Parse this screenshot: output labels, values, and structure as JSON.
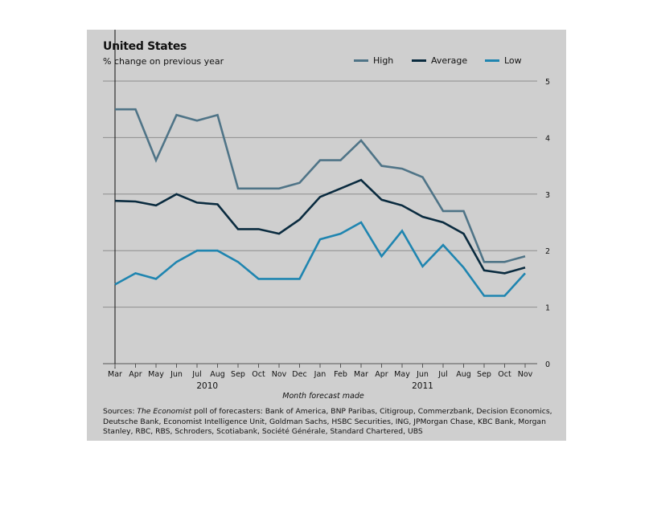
{
  "chart_data": {
    "type": "line",
    "title": "United States",
    "subtitle": "% change on previous year",
    "xlabel": "Month forecast made",
    "ylabel": "",
    "ylim": [
      0,
      5
    ],
    "yticks": [
      "0",
      "1",
      "2",
      "3",
      "4",
      "5"
    ],
    "grid": true,
    "legend_position": "top-right",
    "categories": [
      "Mar",
      "Apr",
      "May",
      "Jun",
      "Jul",
      "Aug",
      "Sep",
      "Oct",
      "Nov",
      "Dec",
      "Jan",
      "Feb",
      "Mar",
      "Apr",
      "May",
      "Jun",
      "Jul",
      "Aug",
      "Sep",
      "Oct",
      "Nov"
    ],
    "year_labels": [
      "2010",
      "2011"
    ],
    "series": [
      {
        "name": "High",
        "color": "#4f7487",
        "values": [
          4.5,
          4.5,
          3.6,
          4.4,
          4.3,
          4.4,
          3.1,
          3.1,
          3.1,
          3.2,
          3.6,
          3.6,
          3.95,
          3.5,
          3.45,
          3.3,
          2.7,
          2.7,
          1.8,
          1.8,
          1.9
        ]
      },
      {
        "name": "Average",
        "color": "#0a2b3f",
        "values": [
          2.88,
          2.87,
          2.8,
          3.0,
          2.85,
          2.82,
          2.38,
          2.38,
          2.3,
          2.55,
          2.95,
          3.1,
          3.25,
          2.9,
          2.8,
          2.6,
          2.5,
          2.3,
          1.65,
          1.6,
          1.7
        ]
      },
      {
        "name": "Low",
        "color": "#1f85b0",
        "values": [
          1.4,
          1.6,
          1.5,
          1.8,
          2.0,
          2.0,
          1.8,
          1.5,
          1.5,
          1.5,
          2.2,
          2.3,
          2.5,
          1.9,
          2.35,
          1.72,
          2.1,
          1.7,
          1.2,
          1.2,
          1.6
        ]
      }
    ],
    "source_prefix": "Sources: ",
    "source_italic": "The Economist",
    "source_rest": " poll of forecasters: Bank of America, BNP Paribas, Citigroup, Commerzbank, Decision Economics, Deutsche Bank, Economist Intelligence Unit, Goldman Sachs, HSBC Securities, ING, JPMorgan Chase, KBC Bank, Morgan Stanley, RBC, RBS, Schroders, Scotiabank, Société Générale, Standard Chartered, UBS"
  }
}
